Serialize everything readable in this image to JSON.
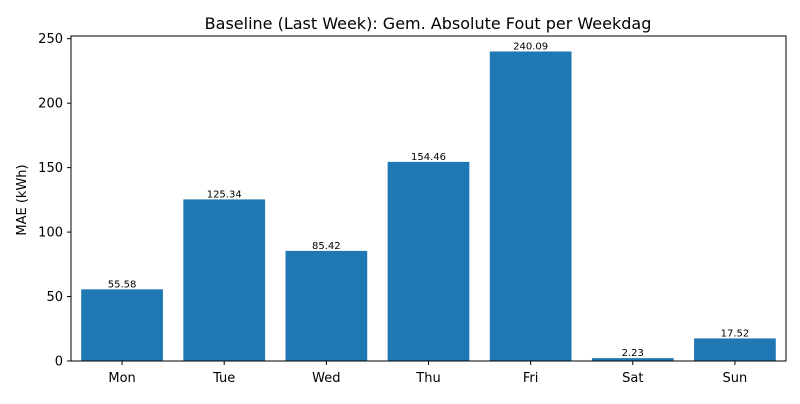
{
  "chart_data": {
    "type": "bar",
    "title": "Baseline (Last Week): Gem. Absolute Fout per Weekdag",
    "xlabel": "",
    "ylabel": "MAE (kWh)",
    "categories": [
      "Mon",
      "Tue",
      "Wed",
      "Thu",
      "Fri",
      "Sat",
      "Sun"
    ],
    "values": [
      55.58,
      125.34,
      85.42,
      154.46,
      240.09,
      2.23,
      17.52
    ],
    "value_labels": [
      "55.58",
      "125.34",
      "85.42",
      "154.46",
      "240.09",
      "2.23",
      "17.52"
    ],
    "ylim": [
      0,
      252.1
    ],
    "yticks": [
      0,
      50,
      100,
      150,
      200,
      250
    ],
    "ytick_labels": [
      "0",
      "50",
      "100",
      "150",
      "200",
      "250"
    ],
    "grid": false,
    "bar_color": "#1f77b4"
  }
}
